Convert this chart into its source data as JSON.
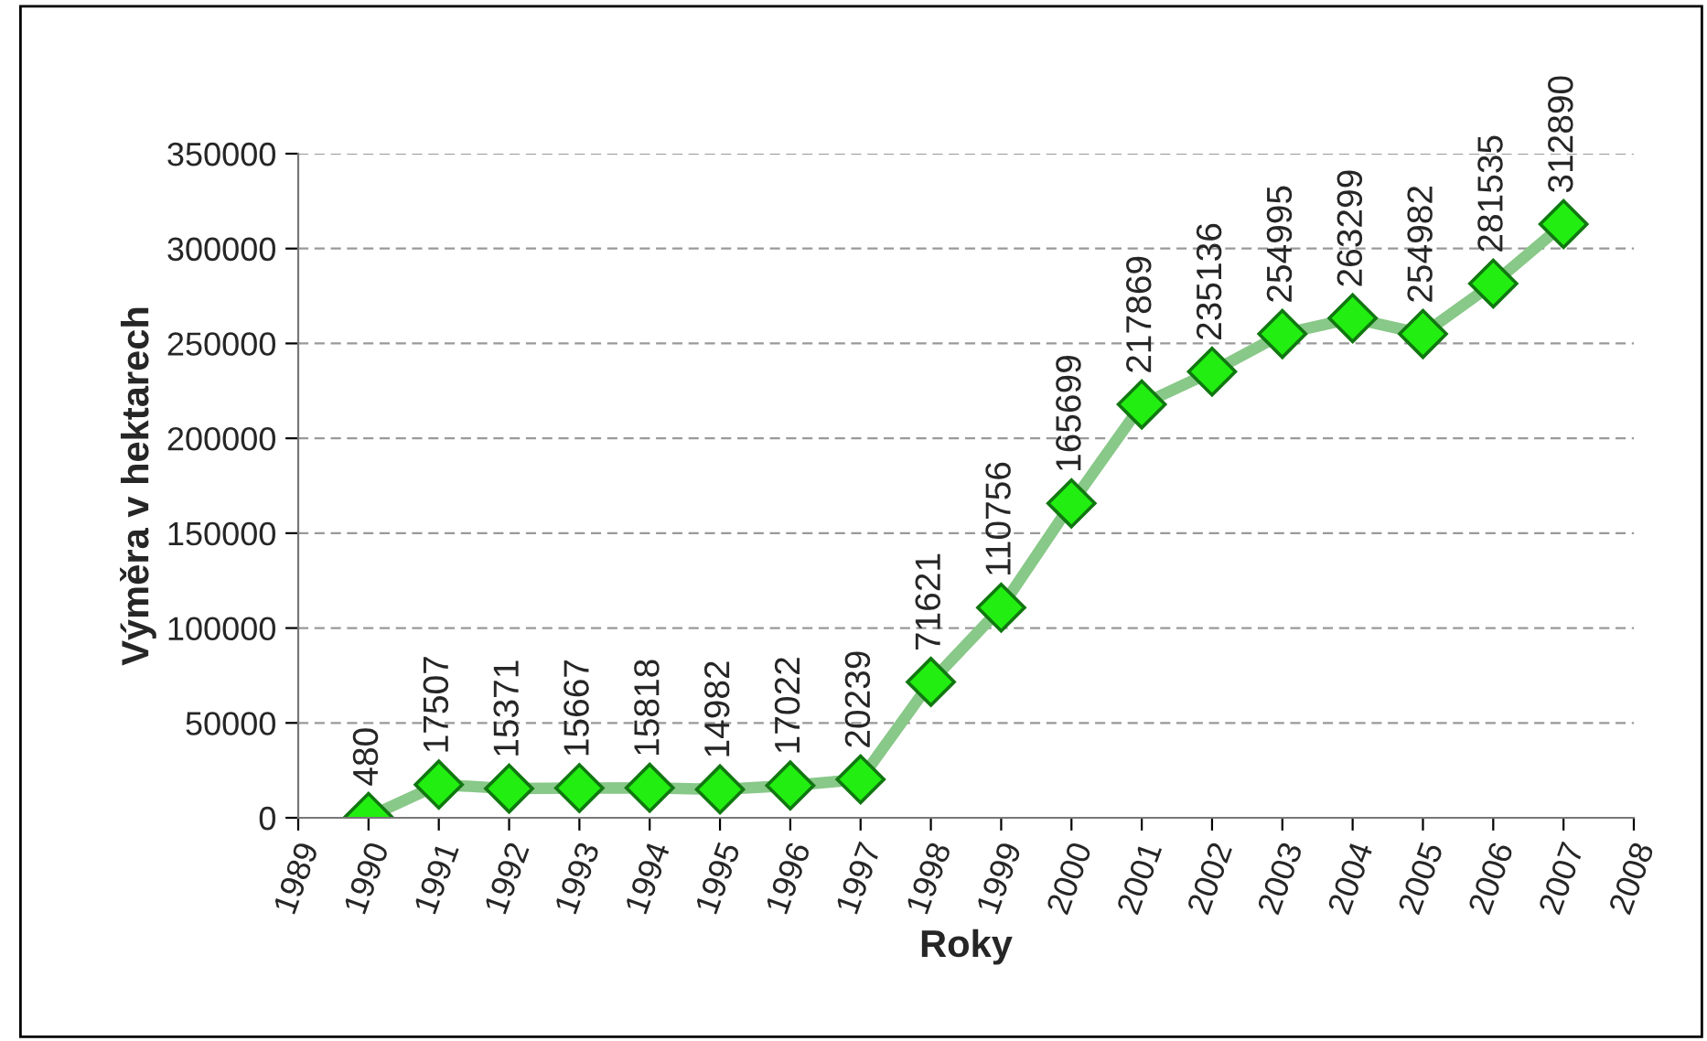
{
  "chart_data": {
    "type": "line",
    "xlabel": "Roky",
    "ylabel": "Výměra v hektarech",
    "x": [
      1990,
      1991,
      1992,
      1993,
      1994,
      1995,
      1996,
      1997,
      1998,
      1999,
      2000,
      2001,
      2002,
      2003,
      2004,
      2005,
      2006,
      2007
    ],
    "series": [
      {
        "color": "#88c888",
        "values": [
          480,
          17507,
          15371,
          15667,
          15818,
          14982,
          17022,
          20239,
          71621,
          110756,
          165699,
          217869,
          235136,
          254995,
          263299,
          254982,
          281535,
          312890
        ]
      }
    ],
    "xlim": [
      1989,
      2008
    ],
    "xticks": [
      1989,
      1990,
      1991,
      1992,
      1993,
      1994,
      1995,
      1996,
      1997,
      1998,
      1999,
      2000,
      2001,
      2002,
      2003,
      2004,
      2005,
      2006,
      2007,
      2008
    ],
    "ylim": [
      0,
      350000
    ],
    "yticks": [
      0,
      50000,
      100000,
      150000,
      200000,
      250000,
      300000,
      350000
    ],
    "grid": "y",
    "marker": "diamond",
    "line_style": "solid",
    "data_labels": true
  }
}
